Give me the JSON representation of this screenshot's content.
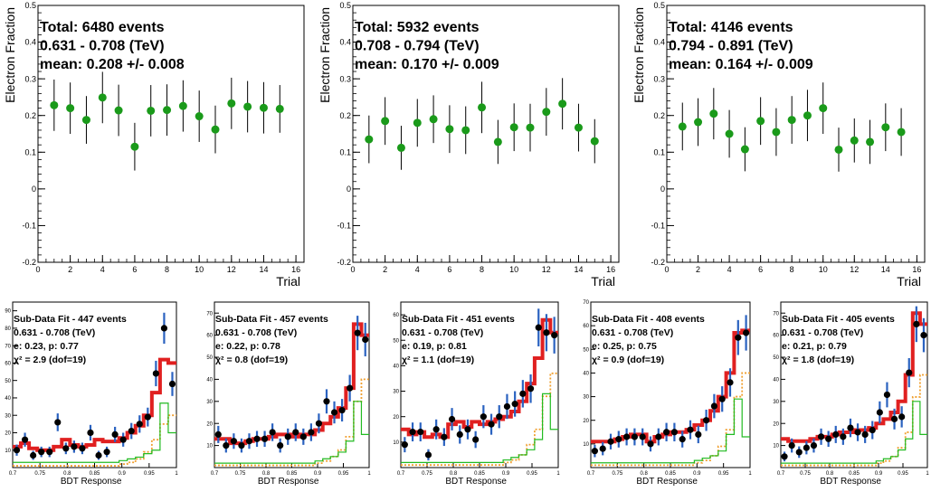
{
  "colors": {
    "points": "#1a9a1a",
    "data_points": "#000000",
    "data_errors": "#2a62c0",
    "total_fit": "#e02020",
    "electron": "#22bb22",
    "background": "#f0a030"
  },
  "chart_data": [
    {
      "type": "scatter",
      "title_lines": [
        "Total: 6480  events",
        "0.631 - 0.708  (TeV)",
        "mean:  0.208 +/- 0.008"
      ],
      "xlabel": "Trial",
      "ylabel": "Electron Fraction",
      "xlim": [
        0,
        16.5
      ],
      "ylim": [
        -0.2,
        0.5
      ],
      "xticks": [
        0,
        2,
        4,
        6,
        8,
        10,
        12,
        14,
        16
      ],
      "yticks": [
        -0.2,
        -0.1,
        0,
        0.1,
        0.2,
        0.3,
        0.4,
        0.5
      ],
      "tick_labels_x": [
        "0",
        "2",
        "4",
        "6",
        "8",
        "10",
        "12",
        "14",
        "16"
      ],
      "tick_labels_y": [
        "-0.2",
        "-0.1",
        "0",
        "0.1",
        "0.2",
        "0.3",
        "0.4",
        "0.5"
      ],
      "x": [
        1,
        2,
        3,
        4,
        5,
        6,
        7,
        8,
        9,
        10,
        11,
        12,
        13,
        14,
        15
      ],
      "y": [
        0.228,
        0.22,
        0.188,
        0.249,
        0.214,
        0.115,
        0.213,
        0.215,
        0.226,
        0.198,
        0.162,
        0.233,
        0.224,
        0.221,
        0.218
      ],
      "yerr": [
        0.07,
        0.07,
        0.065,
        0.07,
        0.07,
        0.065,
        0.07,
        0.07,
        0.07,
        0.07,
        0.065,
        0.07,
        0.07,
        0.07,
        0.065
      ]
    },
    {
      "type": "scatter",
      "title_lines": [
        "Total: 5932  events",
        "0.708 - 0.794  (TeV)",
        "mean:  0.170 +/- 0.009"
      ],
      "xlabel": "Trial",
      "ylabel": "Electron Fraction",
      "xlim": [
        0,
        16.5
      ],
      "ylim": [
        -0.2,
        0.5
      ],
      "xticks": [
        0,
        2,
        4,
        6,
        8,
        10,
        12,
        14,
        16
      ],
      "yticks": [
        -0.2,
        -0.1,
        0,
        0.1,
        0.2,
        0.3,
        0.4,
        0.5
      ],
      "tick_labels_x": [
        "0",
        "2",
        "4",
        "6",
        "8",
        "10",
        "12",
        "14",
        "16"
      ],
      "tick_labels_y": [
        "-0.2",
        "-0.1",
        "0",
        "0.1",
        "0.2",
        "0.3",
        "0.4",
        "0.5"
      ],
      "x": [
        1,
        2,
        3,
        4,
        5,
        6,
        7,
        8,
        9,
        10,
        11,
        12,
        13,
        14,
        15
      ],
      "y": [
        0.135,
        0.185,
        0.112,
        0.18,
        0.19,
        0.163,
        0.16,
        0.222,
        0.128,
        0.168,
        0.167,
        0.21,
        0.232,
        0.167,
        0.13
      ],
      "yerr": [
        0.065,
        0.065,
        0.06,
        0.065,
        0.065,
        0.065,
        0.065,
        0.07,
        0.06,
        0.065,
        0.065,
        0.065,
        0.07,
        0.065,
        0.06
      ]
    },
    {
      "type": "scatter",
      "title_lines": [
        "Total: 4146  events",
        "0.794 - 0.891  (TeV)",
        "mean:  0.164 +/- 0.009"
      ],
      "xlabel": "Trial",
      "ylabel": "Electron Fraction",
      "xlim": [
        0,
        16.5
      ],
      "ylim": [
        -0.2,
        0.5
      ],
      "xticks": [
        0,
        2,
        4,
        6,
        8,
        10,
        12,
        14,
        16
      ],
      "yticks": [
        -0.2,
        -0.1,
        0,
        0.1,
        0.2,
        0.3,
        0.4,
        0.5
      ],
      "tick_labels_x": [
        "0",
        "2",
        "4",
        "6",
        "8",
        "10",
        "12",
        "14",
        "16"
      ],
      "tick_labels_y": [
        "-0.2",
        "-0.1",
        "0",
        "0.1",
        "0.2",
        "0.3",
        "0.4",
        "0.5"
      ],
      "x": [
        1,
        2,
        3,
        4,
        5,
        6,
        7,
        8,
        9,
        10,
        11,
        12,
        13,
        14,
        15
      ],
      "y": [
        0.17,
        0.182,
        0.205,
        0.15,
        0.108,
        0.185,
        0.155,
        0.188,
        0.2,
        0.22,
        0.107,
        0.132,
        0.128,
        0.168,
        0.155
      ],
      "yerr": [
        0.065,
        0.065,
        0.07,
        0.065,
        0.06,
        0.065,
        0.065,
        0.065,
        0.07,
        0.07,
        0.06,
        0.06,
        0.06,
        0.065,
        0.065
      ]
    },
    {
      "type": "line",
      "title_lines": [
        "Sub-Data Fit - 447  events",
        "0.631 - 0.708  (TeV)",
        "e:  0.23, p:  0.77",
        "χ² =  2.9  (dof=19)"
      ],
      "xlabel": "BDT Response",
      "ylabel": "",
      "xlim": [
        0.7,
        1.0
      ],
      "ylim": [
        0,
        95
      ],
      "xticks": [
        0.7,
        0.75,
        0.8,
        0.85,
        0.9,
        0.95,
        1.0
      ],
      "yticks": [
        10,
        20,
        30,
        40,
        50,
        60,
        70,
        80,
        90
      ],
      "tick_labels_x": [
        "0.7",
        "0.75",
        "0.8",
        "0.85",
        "0.9",
        "0.95",
        "1"
      ],
      "tick_labels_y": [
        "10",
        "20",
        "30",
        "40",
        "50",
        "60",
        "70",
        "80",
        "90"
      ],
      "bin_edges": [
        0.7,
        0.715,
        0.73,
        0.745,
        0.76,
        0.775,
        0.79,
        0.805,
        0.82,
        0.835,
        0.85,
        0.865,
        0.88,
        0.895,
        0.91,
        0.925,
        0.94,
        0.955,
        0.97,
        0.985,
        1.0
      ],
      "data": [
        10,
        16,
        7,
        9,
        9,
        26,
        11,
        12,
        11,
        20,
        7,
        9,
        19,
        16,
        21,
        25,
        29,
        54,
        80,
        48
      ],
      "data_err": [
        3.2,
        4,
        2.6,
        3,
        3,
        5.1,
        3.3,
        3.5,
        3.3,
        4.5,
        2.6,
        3,
        4.4,
        4,
        4.6,
        5,
        5.4,
        7.3,
        8.9,
        6.9
      ],
      "total_fit": [
        12,
        14,
        11,
        10,
        10,
        12,
        16,
        13,
        12,
        13,
        16,
        15,
        15,
        17,
        20,
        24,
        30,
        43,
        62,
        60
      ],
      "electron": [
        3,
        3,
        3,
        3,
        3,
        3,
        3,
        3,
        3,
        3,
        3,
        3,
        3,
        4,
        5,
        6,
        8,
        10,
        37,
        20
      ],
      "background": [
        1,
        1,
        1,
        1,
        1,
        1,
        1,
        1,
        1,
        1,
        1,
        1,
        1,
        2,
        3,
        5,
        9,
        16,
        25,
        30
      ]
    },
    {
      "type": "line",
      "title_lines": [
        "Sub-Data Fit - 457  events",
        "0.631 - 0.708  (TeV)",
        "e:  0.22, p:  0.78",
        "χ² =  0.8  (dof=19)"
      ],
      "xlabel": "BDT Response",
      "ylabel": "",
      "xlim": [
        0.7,
        1.0
      ],
      "ylim": [
        0,
        75
      ],
      "xticks": [
        0.7,
        0.75,
        0.8,
        0.85,
        0.9,
        0.95,
        1.0
      ],
      "yticks": [
        10,
        20,
        30,
        40,
        50,
        60,
        70
      ],
      "tick_labels_x": [
        "0.7",
        "0.75",
        "0.8",
        "0.85",
        "0.9",
        "0.95",
        "1"
      ],
      "tick_labels_y": [
        "10",
        "20",
        "30",
        "40",
        "50",
        "60",
        "70"
      ],
      "bin_edges": [
        0.7,
        0.715,
        0.73,
        0.745,
        0.76,
        0.775,
        0.79,
        0.805,
        0.82,
        0.835,
        0.85,
        0.865,
        0.88,
        0.895,
        0.91,
        0.925,
        0.94,
        0.955,
        0.97,
        0.985,
        1.0
      ],
      "data": [
        15,
        10,
        12,
        10,
        12,
        13,
        13,
        16,
        10,
        14,
        16,
        14,
        16,
        20,
        30,
        25,
        26,
        36,
        61,
        58
      ],
      "data_err": [
        3.9,
        3.2,
        3.5,
        3.2,
        3.5,
        3.6,
        3.6,
        4,
        3.2,
        3.7,
        4,
        3.7,
        4,
        4.5,
        5.5,
        5,
        5.1,
        6,
        7.8,
        7.6
      ],
      "total_fit": [
        13,
        13,
        11,
        11,
        12,
        13,
        13,
        14,
        15,
        15,
        14,
        15,
        15,
        17,
        20,
        23,
        27,
        36,
        65,
        60
      ],
      "electron": [
        2,
        2,
        2,
        2,
        2,
        2,
        2,
        2,
        2,
        2,
        2,
        2,
        2,
        3,
        4,
        5,
        7,
        12,
        30,
        15
      ],
      "background": [
        1,
        1,
        1,
        1,
        1,
        1,
        1,
        1,
        1,
        1,
        1,
        1,
        1,
        2,
        3,
        5,
        8,
        14,
        30,
        40
      ]
    },
    {
      "type": "line",
      "title_lines": [
        "Sub-Data Fit - 451  events",
        "0.631 - 0.708  (TeV)",
        "e:  0.19, p:  0.81",
        "χ² =  1.1  (dof=19)"
      ],
      "xlabel": "BDT Response",
      "ylabel": "",
      "xlim": [
        0.7,
        1.0
      ],
      "ylim": [
        0,
        65
      ],
      "xticks": [
        0.7,
        0.75,
        0.8,
        0.85,
        0.9,
        0.95,
        1.0
      ],
      "yticks": [
        10,
        20,
        30,
        40,
        50,
        60
      ],
      "tick_labels_x": [
        "0.7",
        "0.75",
        "0.8",
        "0.85",
        "0.9",
        "0.95",
        "1"
      ],
      "tick_labels_y": [
        "10",
        "20",
        "30",
        "40",
        "50",
        "60"
      ],
      "bin_edges": [
        0.7,
        0.715,
        0.73,
        0.745,
        0.76,
        0.775,
        0.79,
        0.805,
        0.82,
        0.835,
        0.85,
        0.865,
        0.88,
        0.895,
        0.91,
        0.925,
        0.94,
        0.955,
        0.97,
        0.985,
        1.0
      ],
      "data": [
        9,
        14,
        14,
        5,
        15,
        12,
        19,
        13,
        15,
        11,
        20,
        17,
        20,
        24,
        25,
        29,
        31,
        55,
        53,
        52
      ],
      "data_err": [
        3,
        3.7,
        3.7,
        2.2,
        3.9,
        3.5,
        4.4,
        3.6,
        3.9,
        3.3,
        4.5,
        4.1,
        4.5,
        4.9,
        5,
        5.4,
        5.6,
        7.4,
        7.3,
        7.2
      ],
      "total_fit": [
        15,
        13,
        14,
        12,
        13,
        12,
        17,
        18,
        16,
        18,
        17,
        18,
        19,
        20,
        22,
        26,
        33,
        43,
        58,
        53
      ],
      "electron": [
        2,
        2,
        2,
        2,
        2,
        2,
        2,
        2,
        2,
        2,
        2,
        2,
        2,
        3,
        4,
        5,
        7,
        11,
        29,
        15
      ],
      "background": [
        1,
        1,
        1,
        1,
        1,
        1,
        1,
        1,
        1,
        1,
        1,
        1,
        1,
        2,
        3,
        5,
        9,
        15,
        28,
        37
      ]
    },
    {
      "type": "line",
      "title_lines": [
        "Sub-Data Fit - 408  events",
        "0.631 - 0.708  (TeV)",
        "e:  0.25, p:  0.75",
        "χ² =  0.9  (dof=19)"
      ],
      "xlabel": "BDT Response",
      "ylabel": "",
      "xlim": [
        0.7,
        1.0
      ],
      "ylim": [
        0,
        70
      ],
      "xticks": [
        0.7,
        0.75,
        0.8,
        0.85,
        0.9,
        0.95,
        1.0
      ],
      "yticks": [
        10,
        20,
        30,
        40,
        50,
        60,
        70
      ],
      "tick_labels_x": [
        "0.7",
        "0.75",
        "0.8",
        "0.85",
        "0.9",
        "0.95",
        "1"
      ],
      "tick_labels_y": [
        "10",
        "20",
        "30",
        "40",
        "50",
        "60",
        "70"
      ],
      "bin_edges": [
        0.7,
        0.715,
        0.73,
        0.745,
        0.76,
        0.775,
        0.79,
        0.805,
        0.82,
        0.835,
        0.85,
        0.865,
        0.88,
        0.895,
        0.91,
        0.925,
        0.94,
        0.955,
        0.97,
        0.985,
        1.0
      ],
      "data": [
        7,
        8,
        11,
        12,
        13,
        13,
        13,
        10,
        13,
        15,
        15,
        12,
        16,
        14,
        20,
        26,
        29,
        36,
        55,
        57
      ],
      "data_err": [
        2.6,
        2.8,
        3.3,
        3.5,
        3.6,
        3.6,
        3.6,
        3.2,
        3.6,
        3.9,
        3.9,
        3.5,
        4,
        3.7,
        4.5,
        5.1,
        5.4,
        6,
        7.4,
        7.5
      ],
      "total_fit": [
        11,
        11,
        11,
        12,
        13,
        14,
        14,
        11,
        13,
        14,
        15,
        15,
        16,
        18,
        20,
        24,
        30,
        40,
        57,
        58
      ],
      "electron": [
        2,
        2,
        2,
        2,
        2,
        2,
        2,
        2,
        2,
        2,
        2,
        2,
        2,
        3,
        4,
        5,
        7,
        14,
        29,
        13
      ],
      "background": [
        1,
        1,
        1,
        1,
        1,
        1,
        1,
        1,
        1,
        1,
        1,
        1,
        1,
        2,
        3,
        5,
        9,
        16,
        30,
        40
      ]
    },
    {
      "type": "line",
      "title_lines": [
        "Sub-Data Fit - 405  events",
        "0.631 - 0.708  (TeV)",
        "e:  0.21, p:  0.79",
        "χ² =  1.8  (dof=19)"
      ],
      "xlabel": "BDT Response",
      "ylabel": "",
      "xlim": [
        0.7,
        1.0
      ],
      "ylim": [
        0,
        75
      ],
      "xticks": [
        0.7,
        0.75,
        0.8,
        0.85,
        0.9,
        0.95,
        1.0
      ],
      "yticks": [
        10,
        20,
        30,
        40,
        50,
        60,
        70
      ],
      "tick_labels_x": [
        "0.7",
        "0.75",
        "0.8",
        "0.85",
        "0.9",
        "0.95",
        "1"
      ],
      "tick_labels_y": [
        "10",
        "20",
        "30",
        "40",
        "50",
        "60",
        "70"
      ],
      "bin_edges": [
        0.7,
        0.715,
        0.73,
        0.745,
        0.76,
        0.775,
        0.79,
        0.805,
        0.82,
        0.835,
        0.85,
        0.865,
        0.88,
        0.895,
        0.91,
        0.925,
        0.94,
        0.955,
        0.97,
        0.985,
        1.0
      ],
      "data": [
        5,
        10,
        7,
        9,
        10,
        14,
        13,
        15,
        14,
        18,
        16,
        15,
        17,
        25,
        33,
        22,
        23,
        43,
        65,
        60
      ],
      "data_err": [
        2.2,
        3.2,
        2.6,
        3,
        3.2,
        3.7,
        3.6,
        3.9,
        3.7,
        4.2,
        4,
        3.9,
        4.1,
        5,
        5.7,
        4.7,
        4.8,
        6.6,
        8.1,
        7.7
      ],
      "total_fit": [
        13,
        12,
        12,
        12,
        13,
        14,
        14,
        15,
        16,
        16,
        17,
        17,
        18,
        20,
        22,
        25,
        30,
        42,
        70,
        65
      ],
      "electron": [
        2,
        2,
        2,
        2,
        2,
        2,
        2,
        2,
        2,
        2,
        2,
        2,
        2,
        3,
        4,
        5,
        8,
        13,
        30,
        15
      ],
      "background": [
        1,
        1,
        1,
        1,
        1,
        1,
        1,
        1,
        1,
        1,
        1,
        1,
        1,
        2,
        3,
        5,
        9,
        16,
        32,
        42
      ]
    }
  ]
}
